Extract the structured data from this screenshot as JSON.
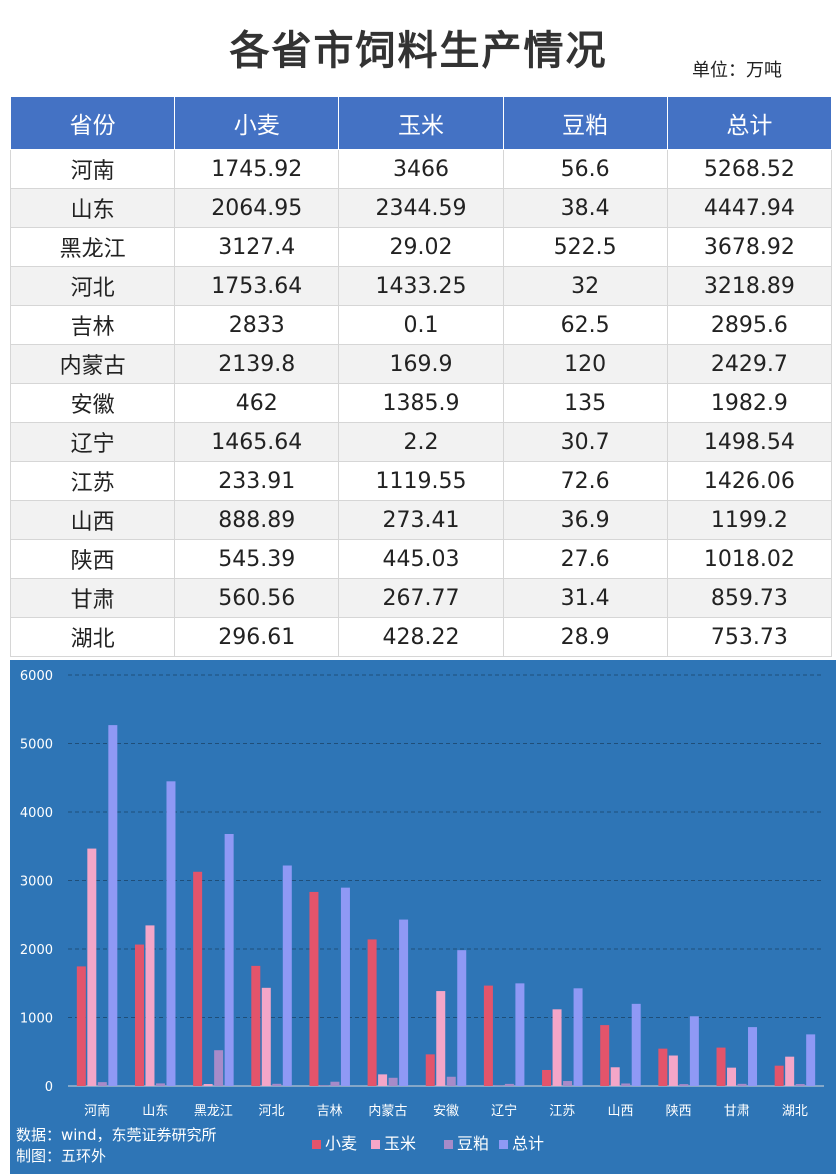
{
  "title": "各省市饲料生产情况",
  "unit": "单位：万吨",
  "table": {
    "headers": [
      "省份",
      "小麦",
      "玉米",
      "豆粕",
      "总计"
    ],
    "rows": [
      [
        "河南",
        "1745.92",
        "3466",
        "56.6",
        "5268.52"
      ],
      [
        "山东",
        "2064.95",
        "2344.59",
        "38.4",
        "4447.94"
      ],
      [
        "黑龙江",
        "3127.4",
        "29.02",
        "522.5",
        "3678.92"
      ],
      [
        "河北",
        "1753.64",
        "1433.25",
        "32",
        "3218.89"
      ],
      [
        "吉林",
        "2833",
        "0.1",
        "62.5",
        "2895.6"
      ],
      [
        "内蒙古",
        "2139.8",
        "169.9",
        "120",
        "2429.7"
      ],
      [
        "安徽",
        "462",
        "1385.9",
        "135",
        "1982.9"
      ],
      [
        "辽宁",
        "1465.64",
        "2.2",
        "30.7",
        "1498.54"
      ],
      [
        "江苏",
        "233.91",
        "1119.55",
        "72.6",
        "1426.06"
      ],
      [
        "山西",
        "888.89",
        "273.41",
        "36.9",
        "1199.2"
      ],
      [
        "陕西",
        "545.39",
        "445.03",
        "27.6",
        "1018.02"
      ],
      [
        "甘肃",
        "560.56",
        "267.77",
        "31.4",
        "859.73"
      ],
      [
        "湖北",
        "296.61",
        "428.22",
        "28.9",
        "753.73"
      ]
    ]
  },
  "chart_data": {
    "type": "bar",
    "categories": [
      "河南",
      "山东",
      "黑龙江",
      "河北",
      "吉林",
      "内蒙古",
      "安徽",
      "辽宁",
      "江苏",
      "山西",
      "陕西",
      "甘肃",
      "湖北"
    ],
    "series": [
      {
        "name": "小麦",
        "color": "#e3546b",
        "values": [
          1745.92,
          2064.95,
          3127.4,
          1753.64,
          2833,
          2139.8,
          462,
          1465.64,
          233.91,
          888.89,
          545.39,
          560.56,
          296.61
        ]
      },
      {
        "name": "玉米",
        "color": "#f4a6c8",
        "values": [
          3466,
          2344.59,
          29.02,
          1433.25,
          0.1,
          169.9,
          1385.9,
          2.2,
          1119.55,
          273.41,
          445.03,
          267.77,
          428.22
        ]
      },
      {
        "name": "豆粕",
        "color": "#a78bc9",
        "values": [
          56.6,
          38.4,
          522.5,
          32,
          62.5,
          120,
          135,
          30.7,
          72.6,
          36.9,
          27.6,
          31.4,
          28.9
        ]
      },
      {
        "name": "总计",
        "color": "#8f99f5",
        "values": [
          5268.52,
          4447.94,
          3678.92,
          3218.89,
          2895.6,
          2429.7,
          1982.9,
          1498.54,
          1426.06,
          1199.2,
          1018.02,
          859.73,
          753.73
        ]
      }
    ],
    "ylim": [
      0,
      6000
    ],
    "yticks": [
      0,
      1000,
      2000,
      3000,
      4000,
      5000,
      6000
    ],
    "grid": true,
    "legend_position": "bottom",
    "background": "#2e75b6"
  },
  "source": {
    "line1": "数据：wind，东莞证券研究所",
    "line2": "制图：五环外"
  }
}
